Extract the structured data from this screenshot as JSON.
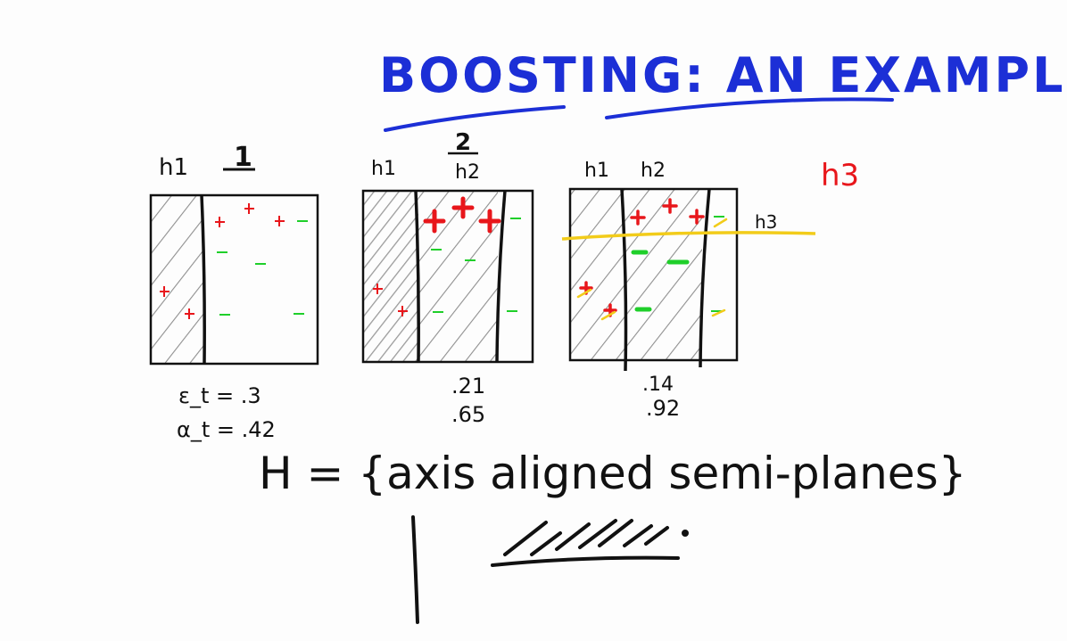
{
  "title": "BOOSTING: AN EXAMPLE",
  "colors": {
    "ink": "#111111",
    "title": "#1c2fd6",
    "plus": "#e8161b",
    "minus": "#1fcf2a",
    "hatch": "#8a8a8a",
    "yellow": "#f2cc1a"
  },
  "panels": [
    {
      "number": "1",
      "labels": [
        "h1"
      ],
      "error": "ε_t = .3",
      "alpha": "α_t = .42"
    },
    {
      "number": "2",
      "labels": [
        "h1",
        "h2"
      ],
      "error": ".21",
      "alpha": ".65"
    },
    {
      "number": "",
      "labels": [
        "h1",
        "h2"
      ],
      "line_label": "h3",
      "error": ".14",
      "alpha": ".92"
    }
  ],
  "side_label": "h3",
  "hypothesis": "H = {axis aligned semi-planes}"
}
